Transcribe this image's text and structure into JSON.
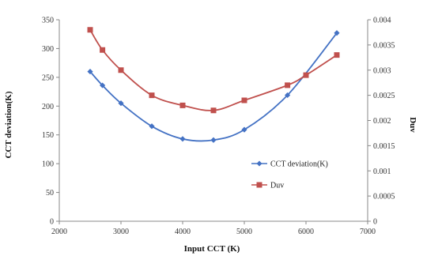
{
  "chart_data": {
    "type": "line",
    "title": "",
    "xlabel": "Input CCT (K)",
    "ylabel": "CCT deviation(K)",
    "y2label": "Duv",
    "xlim": [
      2000,
      7000
    ],
    "ylim": [
      0,
      350
    ],
    "y2lim": [
      0,
      0.004
    ],
    "xticks": [
      "2000",
      "3000",
      "4000",
      "5000",
      "6000",
      "7000"
    ],
    "yticks": [
      "0",
      "50",
      "100",
      "150",
      "200",
      "250",
      "300",
      "350"
    ],
    "y2ticks": [
      "0",
      "0.0005",
      "0.001",
      "0.0015",
      "0.002",
      "0.0025",
      "0.003",
      "0.0035",
      "0.004"
    ],
    "grid": false,
    "legend_position": "center-right",
    "series": [
      {
        "name": "CCT deviation(K)",
        "axis": "left",
        "color": "#4472c4",
        "marker": "diamond",
        "x": [
          2500,
          2700,
          3000,
          3500,
          4000,
          4500,
          5000,
          5700,
          6500
        ],
        "values": [
          260,
          236,
          205,
          165,
          143,
          141,
          159,
          219,
          327
        ]
      },
      {
        "name": "Duv",
        "axis": "right",
        "color": "#c0504d",
        "marker": "square",
        "x": [
          2500,
          2700,
          3000,
          3500,
          4000,
          4500,
          5000,
          5700,
          6000,
          6500
        ],
        "values": [
          0.0038,
          0.0034,
          0.003,
          0.0025,
          0.0023,
          0.0022,
          0.0024,
          0.0027,
          0.0029,
          0.0033
        ]
      }
    ]
  }
}
